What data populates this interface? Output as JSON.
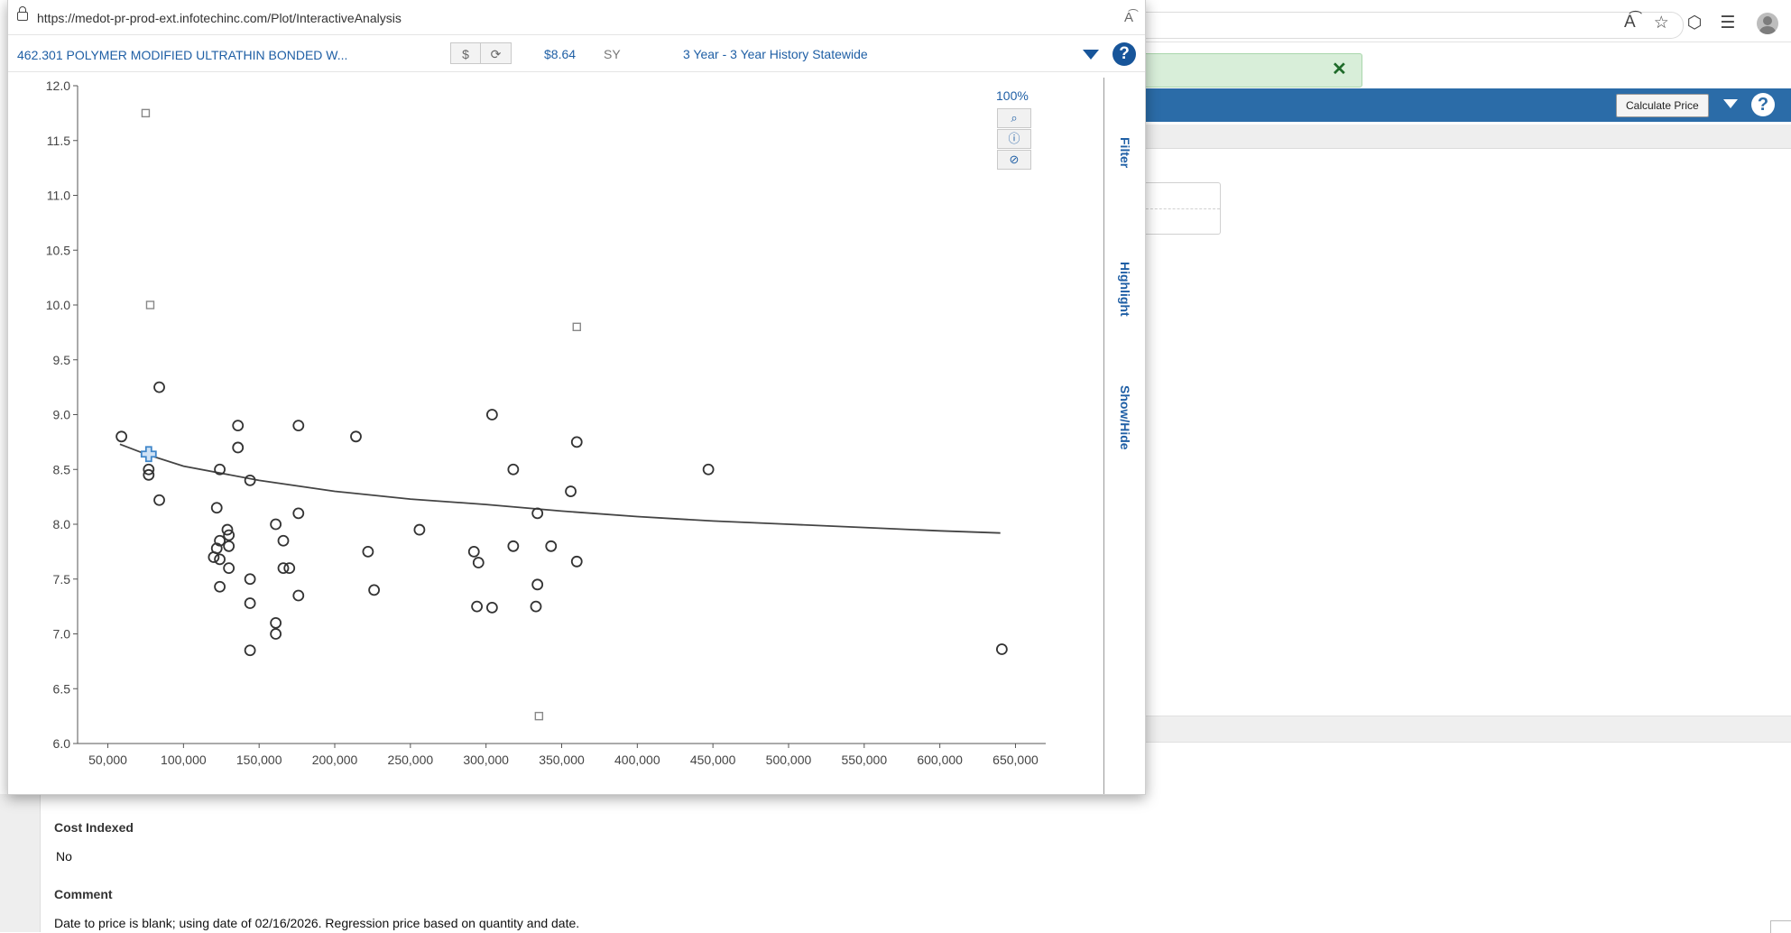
{
  "browser": {
    "icons": [
      "reader-mode-icon",
      "favorite-star-icon",
      "extensions-icon",
      "favorites-icon"
    ]
  },
  "main": {
    "calculate_price_label": "Calculate Price",
    "cost_indexed_label": "Cost Indexed",
    "cost_indexed_value": "No",
    "comment_label": "Comment",
    "comment_text": "Date to price is blank; using date of 02/16/2026. Regression price based on quantity and date."
  },
  "popup": {
    "url": "https://medot-pr-prod-ext.infotechinc.com/Plot/InteractiveAnalysis",
    "item_title": "462.301 POLYMER MODIFIED ULTRATHIN BONDED W...",
    "dollar_btn": "$",
    "refresh_btn": "⟳",
    "price": "$8.64",
    "unit": "SY",
    "history": "3 Year - 3 Year History Statewide",
    "side_tabs": {
      "filter": "Filter",
      "highlight": "Highlight",
      "showhide": "Show/Hide"
    },
    "zoom_percent": "100%"
  },
  "chart_data": {
    "type": "scatter",
    "title": "",
    "xlabel": "",
    "ylabel": "",
    "xlim": [
      30000,
      670000
    ],
    "ylim": [
      6.0,
      12.0
    ],
    "grid": false,
    "x_ticks": [
      50000,
      100000,
      150000,
      200000,
      250000,
      300000,
      350000,
      400000,
      450000,
      500000,
      550000,
      600000,
      650000
    ],
    "x_tick_labels": [
      "50,000",
      "100,000",
      "150,000",
      "200,000",
      "250,000",
      "300,000",
      "350,000",
      "400,000",
      "450,000",
      "500,000",
      "550,000",
      "600,000",
      "650,000"
    ],
    "y_ticks": [
      6.0,
      6.5,
      7.0,
      7.5,
      8.0,
      8.5,
      9.0,
      9.5,
      10.0,
      10.5,
      11.0,
      11.5,
      12.0
    ],
    "y_tick_labels": [
      "6.0",
      "6.5",
      "7.0",
      "7.5",
      "8.0",
      "8.5",
      "9.0",
      "9.5",
      "10.0",
      "10.5",
      "11.0",
      "11.5",
      "12.0"
    ],
    "points": [
      [
        59000,
        8.8
      ],
      [
        77000,
        8.5
      ],
      [
        77000,
        8.45
      ],
      [
        84000,
        9.25
      ],
      [
        84000,
        8.22
      ],
      [
        122000,
        8.15
      ],
      [
        124000,
        8.5
      ],
      [
        122000,
        7.78
      ],
      [
        124000,
        7.85
      ],
      [
        120000,
        7.7
      ],
      [
        124000,
        7.68
      ],
      [
        124000,
        7.43
      ],
      [
        129000,
        7.95
      ],
      [
        130000,
        7.9
      ],
      [
        130000,
        7.8
      ],
      [
        130000,
        7.6
      ],
      [
        136000,
        8.9
      ],
      [
        136000,
        8.7
      ],
      [
        144000,
        8.4
      ],
      [
        144000,
        7.5
      ],
      [
        144000,
        7.28
      ],
      [
        144000,
        6.85
      ],
      [
        161000,
        8.0
      ],
      [
        161000,
        7.1
      ],
      [
        161000,
        7.0
      ],
      [
        166000,
        7.85
      ],
      [
        166000,
        7.6
      ],
      [
        170000,
        7.6
      ],
      [
        176000,
        8.9
      ],
      [
        176000,
        8.1
      ],
      [
        176000,
        7.35
      ],
      [
        214000,
        8.8
      ],
      [
        222000,
        7.75
      ],
      [
        226000,
        7.4
      ],
      [
        256000,
        7.95
      ],
      [
        292000,
        7.75
      ],
      [
        295000,
        7.65
      ],
      [
        294000,
        7.25
      ],
      [
        304000,
        9.0
      ],
      [
        304000,
        7.24
      ],
      [
        318000,
        8.5
      ],
      [
        318000,
        7.8
      ],
      [
        334000,
        8.1
      ],
      [
        334000,
        7.45
      ],
      [
        333000,
        7.25
      ],
      [
        343000,
        7.8
      ],
      [
        356000,
        8.3
      ],
      [
        360000,
        8.75
      ],
      [
        360000,
        7.66
      ],
      [
        447000,
        8.5
      ],
      [
        641000,
        6.86
      ]
    ],
    "outliers": [
      [
        75000,
        11.75
      ],
      [
        78000,
        10.0
      ],
      [
        360000,
        9.8
      ],
      [
        335000,
        6.25
      ]
    ],
    "regression_curve": [
      [
        58000,
        8.73
      ],
      [
        75000,
        8.64
      ],
      [
        100000,
        8.53
      ],
      [
        150000,
        8.4
      ],
      [
        200000,
        8.3
      ],
      [
        250000,
        8.23
      ],
      [
        300000,
        8.18
      ],
      [
        350000,
        8.12
      ],
      [
        400000,
        8.07
      ],
      [
        450000,
        8.03
      ],
      [
        500000,
        8.0
      ],
      [
        550000,
        7.97
      ],
      [
        600000,
        7.94
      ],
      [
        640000,
        7.92
      ]
    ],
    "highlight_point": [
      77000,
      8.64
    ],
    "colors": {
      "points": "#333333",
      "outliers": "#888888",
      "curve": "#444444",
      "highlight": "#3f86c9"
    }
  }
}
